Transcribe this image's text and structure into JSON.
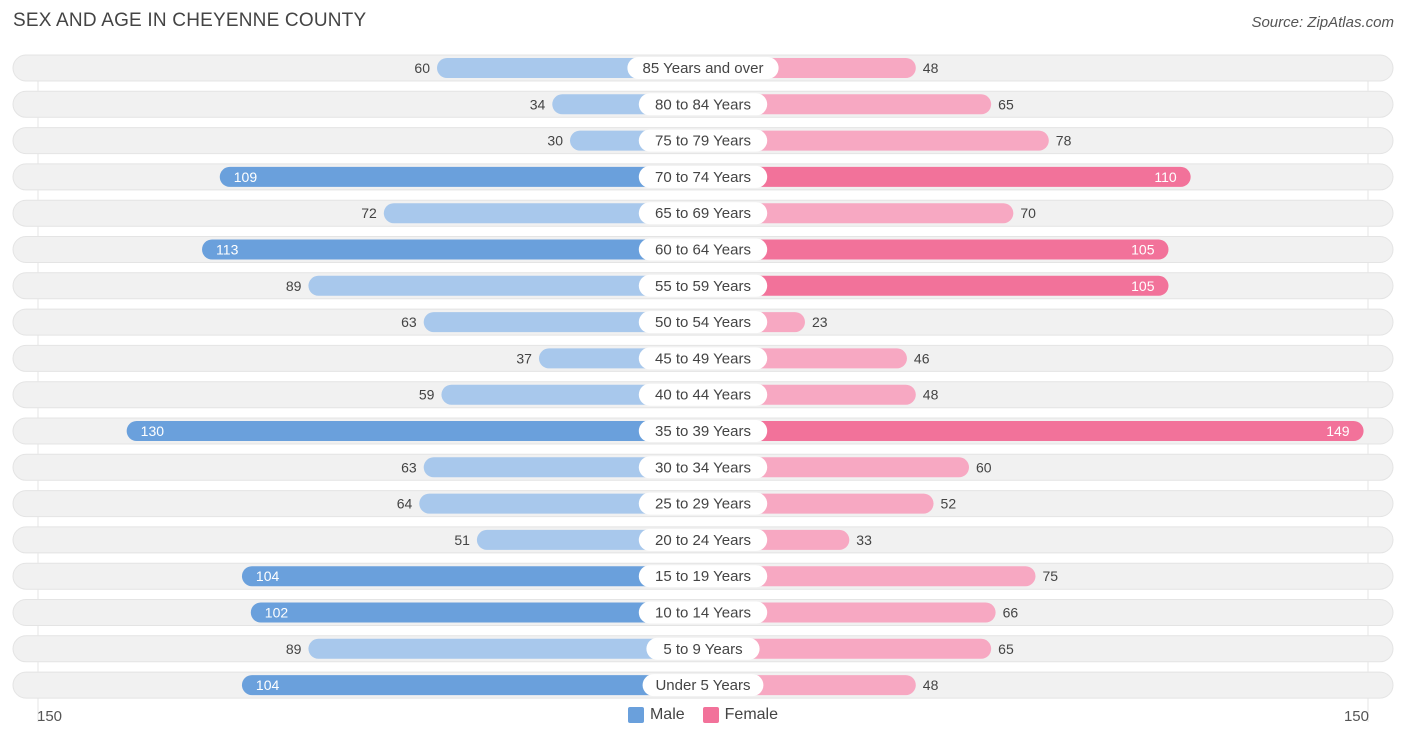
{
  "title": "SEX AND AGE IN CHEYENNE COUNTY",
  "source": "Source: ZipAtlas.com",
  "axis": {
    "left_label": "150",
    "right_label": "150"
  },
  "legend": {
    "male_label": "Male",
    "female_label": "Female"
  },
  "colors": {
    "male_light": "#a8c8ec",
    "male_dark": "#6aa0dc",
    "female_light": "#f7a8c2",
    "female_dark": "#f2729a",
    "track": "#f1f1f1"
  },
  "chart_data": {
    "type": "bar",
    "orientation": "horizontal-diverging",
    "title": "SEX AND AGE IN CHEYENNE COUNTY",
    "xlim": [
      -150,
      150
    ],
    "categories": [
      "85 Years and over",
      "80 to 84 Years",
      "75 to 79 Years",
      "70 to 74 Years",
      "65 to 69 Years",
      "60 to 64 Years",
      "55 to 59 Years",
      "50 to 54 Years",
      "45 to 49 Years",
      "40 to 44 Years",
      "35 to 39 Years",
      "30 to 34 Years",
      "25 to 29 Years",
      "20 to 24 Years",
      "15 to 19 Years",
      "10 to 14 Years",
      "5 to 9 Years",
      "Under 5 Years"
    ],
    "series": [
      {
        "name": "Male",
        "values": [
          60,
          34,
          30,
          109,
          72,
          113,
          89,
          63,
          37,
          59,
          130,
          63,
          64,
          51,
          104,
          102,
          89,
          104
        ]
      },
      {
        "name": "Female",
        "values": [
          48,
          65,
          78,
          110,
          70,
          105,
          105,
          23,
          46,
          48,
          149,
          60,
          52,
          33,
          75,
          66,
          65,
          48
        ]
      }
    ]
  }
}
